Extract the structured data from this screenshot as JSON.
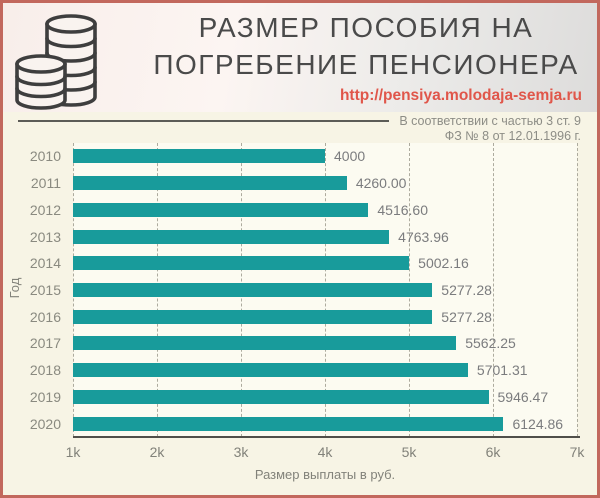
{
  "header": {
    "title_line1": "РАЗМЕР ПОСОБИЯ НА",
    "title_line2": "ПОГРЕБЕНИЕ ПЕНСИОНЕРА",
    "url": "http://pensiya.molodaja-semja.ru",
    "icon": "coin-stack-icon"
  },
  "note": {
    "line1": "В соответствии с частью 3 ст. 9",
    "line2": "ФЗ № 8 от 12.01.1996 г."
  },
  "chart_data": {
    "type": "bar",
    "orientation": "horizontal",
    "title": "Размер пособия на погребение пенсионера",
    "categories": [
      "2010",
      "2011",
      "2012",
      "2013",
      "2014",
      "2015",
      "2016",
      "2017",
      "2018",
      "2019",
      "2020"
    ],
    "values": [
      4000,
      4260.0,
      4516.6,
      4763.96,
      5002.16,
      5277.28,
      5277.28,
      5562.25,
      5701.31,
      5946.47,
      6124.86
    ],
    "value_labels": [
      "4000",
      "4260.00",
      "4516.60",
      "4763.96",
      "5002.16",
      "5277.28",
      "5277.28",
      "5562.25",
      "5701.31",
      "5946.47",
      "6124.86"
    ],
    "xlabel": "Размер выплаты в руб.",
    "ylabel": "Год",
    "xlim": [
      1000,
      7000
    ],
    "xticks": [
      "1k",
      "2k",
      "3k",
      "4k",
      "5k",
      "6k",
      "7k"
    ],
    "grid": "dashed-vertical",
    "legend": "none"
  },
  "colors": {
    "bar": "#189b9b",
    "frame_border": "#c2685d",
    "chart_background": "#f7f4e5",
    "plot_background": "#fcfbf1",
    "url_text": "#e0564a",
    "title_text": "#4a4a4a",
    "muted_text": "#82827a"
  }
}
